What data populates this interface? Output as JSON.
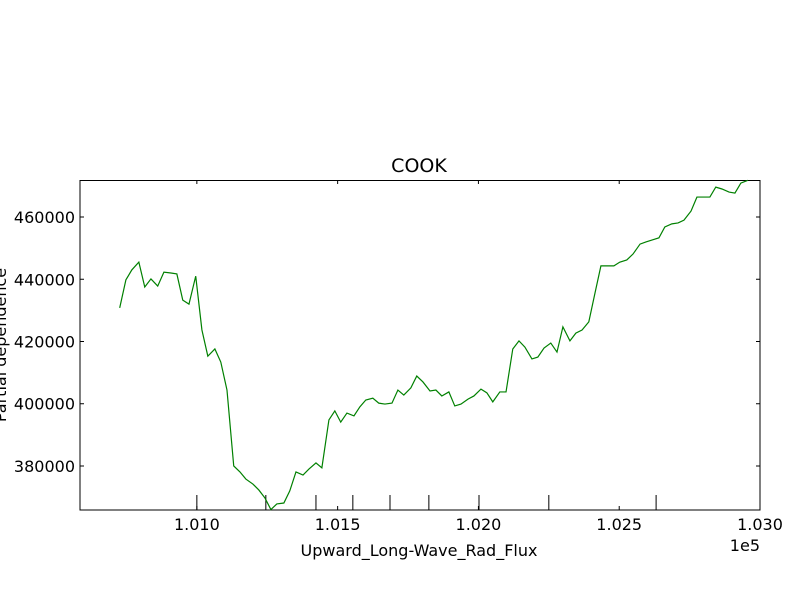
{
  "chart_data": {
    "type": "line",
    "title": "COOK",
    "xlabel": "Upward_Long-Wave_Rad_Flux",
    "ylabel": "Partial dependence",
    "x_offset_label": "1e5",
    "xlim": [
      1.00585,
      1.03
    ],
    "ylim": [
      365860,
      471890
    ],
    "xticks": [
      {
        "value": 1.01,
        "label": "1.010"
      },
      {
        "value": 1.015,
        "label": "1.015"
      },
      {
        "value": 1.02,
        "label": "1.020"
      },
      {
        "value": 1.025,
        "label": "1.025"
      },
      {
        "value": 1.03,
        "label": "1.030"
      }
    ],
    "yticks": [
      380000,
      400000,
      420000,
      440000,
      460000
    ],
    "deciles": [
      1.01,
      1.01245,
      1.01423,
      1.01554,
      1.01686,
      1.01824,
      1.02002,
      1.0225,
      1.02631
    ],
    "grid": false,
    "series": [
      {
        "color": "#008000",
        "x": [
          1.00726,
          1.00748,
          1.00769,
          1.00794,
          1.00815,
          1.00837,
          1.00861,
          1.00883,
          1.00908,
          1.00929,
          1.0095,
          1.00972,
          1.00996,
          1.01018,
          1.01039,
          1.01064,
          1.01085,
          1.01107,
          1.01131,
          1.01153,
          1.01174,
          1.01199,
          1.0122,
          1.01242,
          1.01263,
          1.01284,
          1.01309,
          1.0133,
          1.01352,
          1.01377,
          1.01398,
          1.01423,
          1.01444,
          1.01469,
          1.0149,
          1.01511,
          1.01533,
          1.01558,
          1.01579,
          1.016,
          1.01625,
          1.01646,
          1.01668,
          1.01693,
          1.01714,
          1.01735,
          1.0176,
          1.01781,
          1.01803,
          1.01828,
          1.01849,
          1.0187,
          1.01895,
          1.01916,
          1.01938,
          1.01963,
          1.01984,
          1.02009,
          1.0203,
          1.02051,
          1.02076,
          1.02098,
          1.02122,
          1.02144,
          1.02165,
          1.0219,
          1.02211,
          1.02233,
          1.02257,
          1.02279,
          1.023,
          1.02325,
          1.02346,
          1.02368,
          1.02392,
          1.02414,
          1.02435,
          1.0246,
          1.02481,
          1.02502,
          1.02527,
          1.02549,
          1.02574,
          1.02595,
          1.02616,
          1.02641,
          1.02662,
          1.02687,
          1.02709,
          1.0273,
          1.02755,
          1.02776,
          1.02797,
          1.02822,
          1.02843,
          1.02865,
          1.0289,
          1.02911,
          1.02932,
          1.02957
        ],
        "values": [
          430800,
          439800,
          443000,
          445500,
          437500,
          440100,
          437800,
          442300,
          442000,
          441700,
          433300,
          432000,
          441000,
          423700,
          415300,
          417600,
          413400,
          404400,
          380000,
          378100,
          375800,
          374200,
          372300,
          369700,
          366000,
          367800,
          368100,
          372000,
          378100,
          377100,
          379000,
          381000,
          379400,
          394800,
          397700,
          394100,
          397000,
          396100,
          399000,
          401200,
          401800,
          400200,
          399900,
          400200,
          404400,
          402800,
          405100,
          408900,
          407000,
          404100,
          404400,
          402500,
          403800,
          399300,
          399900,
          401500,
          402500,
          404700,
          403500,
          400600,
          403800,
          403800,
          417600,
          420200,
          418200,
          414400,
          415000,
          417900,
          419500,
          416600,
          424700,
          420200,
          422700,
          423700,
          426300,
          435600,
          444300,
          444300,
          444300,
          445500,
          446200,
          448100,
          451300,
          452000,
          452600,
          453300,
          456800,
          457800,
          458100,
          459000,
          461900,
          466400,
          466400,
          466400,
          469600,
          469000,
          468000,
          467700,
          470900,
          471800
        ]
      }
    ]
  }
}
